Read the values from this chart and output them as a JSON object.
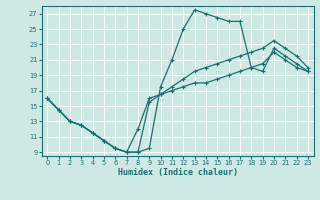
{
  "xlabel": "Humidex (Indice chaleur)",
  "bg_color": "#cde8e5",
  "grid_color": "#ffffff",
  "line_color": "#1a7070",
  "xlim": [
    -0.5,
    23.5
  ],
  "ylim": [
    8.5,
    28.0
  ],
  "xticks": [
    0,
    1,
    2,
    3,
    4,
    5,
    6,
    7,
    8,
    9,
    10,
    11,
    12,
    13,
    14,
    15,
    16,
    17,
    18,
    19,
    20,
    21,
    22,
    23
  ],
  "yticks": [
    9,
    11,
    13,
    15,
    17,
    19,
    21,
    23,
    25,
    27
  ],
  "curve1_x": [
    0,
    1,
    2,
    3,
    4,
    5,
    6,
    7,
    8,
    9,
    10,
    11,
    12,
    13,
    14,
    15,
    16,
    17,
    18,
    19,
    20,
    21,
    22,
    23
  ],
  "curve1_y": [
    16.0,
    14.5,
    13.0,
    12.5,
    11.5,
    10.5,
    9.5,
    9.0,
    9.0,
    9.5,
    17.5,
    21.0,
    25.0,
    27.5,
    27.0,
    26.5,
    26.0,
    26.0,
    20.0,
    19.5,
    22.5,
    21.5,
    20.5,
    19.5
  ],
  "curve2_x": [
    0,
    1,
    2,
    3,
    4,
    5,
    6,
    7,
    8,
    9,
    10,
    11,
    12,
    13,
    14,
    15,
    16,
    17,
    18,
    19,
    20,
    21,
    22,
    23
  ],
  "curve2_y": [
    16.0,
    14.5,
    13.0,
    12.5,
    11.5,
    10.5,
    9.5,
    9.0,
    9.0,
    15.5,
    16.5,
    17.5,
    18.5,
    19.5,
    20.0,
    20.5,
    21.0,
    21.5,
    22.0,
    22.5,
    23.5,
    22.5,
    21.5,
    20.0
  ],
  "curve3_x": [
    0,
    1,
    2,
    3,
    4,
    5,
    6,
    7,
    8,
    9,
    10,
    11,
    12,
    13,
    14,
    15,
    16,
    17,
    18,
    19,
    20,
    21,
    22,
    23
  ],
  "curve3_y": [
    16.0,
    14.5,
    13.0,
    12.5,
    11.5,
    10.5,
    9.5,
    9.0,
    12.0,
    16.0,
    16.5,
    17.0,
    17.5,
    18.0,
    18.0,
    18.5,
    19.0,
    19.5,
    20.0,
    20.5,
    22.0,
    21.0,
    20.0,
    19.5
  ]
}
